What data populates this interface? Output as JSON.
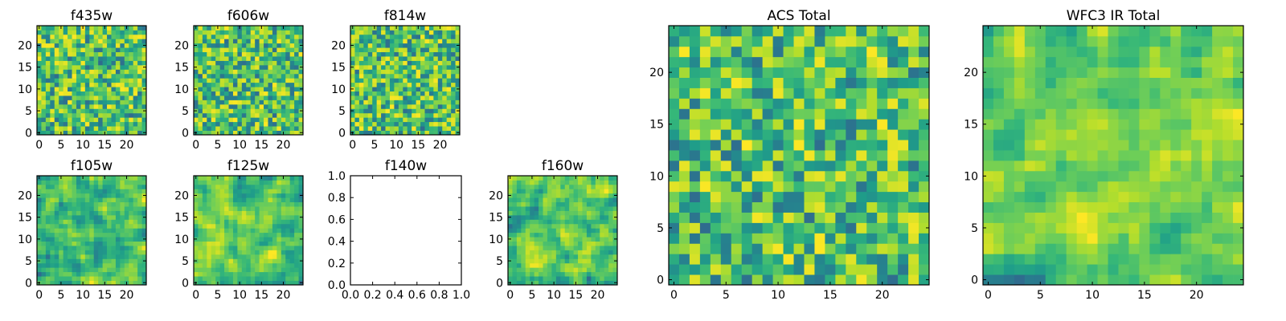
{
  "chart_data": [
    {
      "type": "heatmap",
      "title": "f435w",
      "size": 25,
      "colormap": "viridis",
      "seed": 11,
      "smooth": 0,
      "ticks": [
        0,
        5,
        10,
        15,
        20
      ]
    },
    {
      "type": "heatmap",
      "title": "f606w",
      "size": 25,
      "colormap": "viridis",
      "seed": 23,
      "smooth": 0,
      "ticks": [
        0,
        5,
        10,
        15,
        20
      ]
    },
    {
      "type": "heatmap",
      "title": "f814w",
      "size": 25,
      "colormap": "viridis",
      "seed": 37,
      "smooth": 0,
      "ticks": [
        0,
        5,
        10,
        15,
        20
      ]
    },
    {
      "type": "heatmap",
      "title": "f105w",
      "size": 25,
      "colormap": "viridis",
      "seed": 41,
      "smooth": 1,
      "ticks": [
        0,
        5,
        10,
        15,
        20
      ]
    },
    {
      "type": "heatmap",
      "title": "f125w",
      "size": 25,
      "colormap": "viridis",
      "seed": 53,
      "smooth": 1,
      "ticks": [
        0,
        5,
        10,
        15,
        20
      ]
    },
    {
      "type": "empty",
      "title": "f140w",
      "xlim": [
        0,
        1
      ],
      "ylim": [
        0,
        1
      ],
      "ticks": [
        "0.0",
        "0.2",
        "0.4",
        "0.6",
        "0.8",
        "1.0"
      ]
    },
    {
      "type": "heatmap",
      "title": "f160w",
      "size": 25,
      "colormap": "viridis",
      "seed": 67,
      "smooth": 1,
      "ticks": [
        0,
        5,
        10,
        15,
        20
      ]
    },
    {
      "type": "heatmap",
      "title": "ACS Total",
      "size": 25,
      "colormap": "viridis",
      "seed": 79,
      "smooth": 0,
      "ticks": [
        0,
        5,
        10,
        15,
        20
      ]
    },
    {
      "type": "heatmap",
      "title": "WFC3 IR Total",
      "size": 25,
      "colormap": "viridis",
      "seed": 97,
      "smooth": 1,
      "ticks": [
        0,
        5,
        10,
        15,
        20
      ]
    }
  ]
}
